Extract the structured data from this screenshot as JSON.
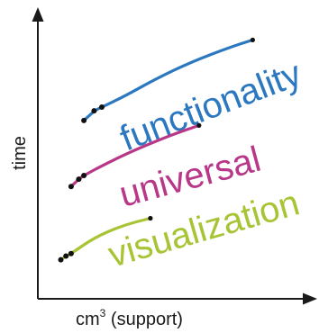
{
  "chart_data": {
    "type": "line",
    "title": "",
    "xlabel": {
      "main": "cm",
      "superscript": "3",
      "rest": " (support)"
    },
    "ylabel": "time",
    "grid": false,
    "legend": "inline labels along each curve",
    "ticks": {
      "x": [],
      "y": []
    },
    "series": [
      {
        "name": "functionality",
        "color": "#2b78c0",
        "x": [
          0.18,
          0.22,
          0.25,
          0.34,
          0.46,
          0.6,
          0.75,
          0.84
        ],
        "y": [
          0.73,
          0.77,
          0.785,
          0.83,
          0.9,
          0.97,
          1.03,
          1.06
        ]
      },
      {
        "name": "universal",
        "color": "#b83788",
        "x": [
          0.13,
          0.16,
          0.18,
          0.26,
          0.38,
          0.52,
          0.63
        ],
        "y": [
          0.46,
          0.49,
          0.505,
          0.55,
          0.61,
          0.67,
          0.71
        ]
      },
      {
        "name": "visualization",
        "color": "#a6c434",
        "x": [
          0.09,
          0.11,
          0.13,
          0.22,
          0.33,
          0.44
        ],
        "y": [
          0.16,
          0.175,
          0.185,
          0.25,
          0.3,
          0.33
        ]
      }
    ]
  }
}
